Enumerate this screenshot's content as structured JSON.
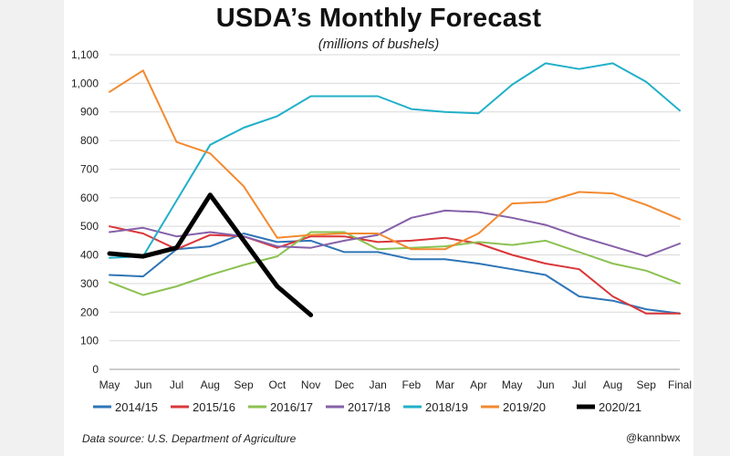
{
  "chart_data": {
    "type": "line",
    "title": "USDA’s Monthly Forecast",
    "subtitle": "(millions of bushels)",
    "categories": [
      "May",
      "Jun",
      "Jul",
      "Aug",
      "Sep",
      "Oct",
      "Nov",
      "Dec",
      "Jan",
      "Feb",
      "Mar",
      "Apr",
      "May",
      "Jun",
      "Jul",
      "Aug",
      "Sep",
      "Final"
    ],
    "ylim": [
      0,
      1100
    ],
    "yticks": [
      "0",
      "100",
      "200",
      "300",
      "400",
      "500",
      "600",
      "700",
      "800",
      "900",
      "1,000",
      "1,100"
    ],
    "ytick_values": [
      0,
      100,
      200,
      300,
      400,
      500,
      600,
      700,
      800,
      900,
      1000,
      1100
    ],
    "grid": true,
    "legend_position": "bottom",
    "series": [
      {
        "name": "2014/15",
        "color": "#2e75b6",
        "width": 2,
        "values": [
          330,
          325,
          420,
          430,
          475,
          445,
          450,
          410,
          410,
          385,
          385,
          370,
          350,
          330,
          255,
          240,
          210,
          195
        ]
      },
      {
        "name": "2015/16",
        "color": "#d9373a",
        "width": 2,
        "values": [
          500,
          475,
          420,
          470,
          465,
          425,
          465,
          465,
          445,
          450,
          460,
          440,
          400,
          370,
          350,
          255,
          195,
          195
        ]
      },
      {
        "name": "2016/17",
        "color": "#8cc152",
        "width": 2,
        "values": [
          305,
          260,
          290,
          330,
          365,
          395,
          480,
          480,
          420,
          425,
          430,
          445,
          435,
          450,
          410,
          370,
          345,
          300
        ]
      },
      {
        "name": "2017/18",
        "color": "#8660a8",
        "width": 2,
        "values": [
          480,
          495,
          465,
          480,
          465,
          430,
          425,
          450,
          470,
          530,
          555,
          550,
          530,
          505,
          465,
          430,
          395,
          440
        ]
      },
      {
        "name": "2018/19",
        "color": "#21b0c9",
        "width": 2,
        "values": [
          390,
          395,
          590,
          785,
          845,
          885,
          955,
          955,
          955,
          910,
          900,
          895,
          995,
          1070,
          1050,
          1070,
          1005,
          905
        ]
      },
      {
        "name": "2019/20",
        "color": "#f28a30",
        "width": 2,
        "values": [
          970,
          1045,
          795,
          755,
          640,
          460,
          470,
          475,
          475,
          420,
          420,
          475,
          580,
          585,
          620,
          615,
          575,
          525
        ]
      },
      {
        "name": "2020/21",
        "color": "#000000",
        "width": 5,
        "values": [
          405,
          395,
          425,
          610,
          450,
          290,
          190,
          null,
          null,
          null,
          null,
          null,
          null,
          null,
          null,
          null,
          null,
          null
        ]
      }
    ]
  },
  "footer": {
    "source": "Data source: U.S. Department of Agriculture",
    "handle": "@kannbwx"
  }
}
